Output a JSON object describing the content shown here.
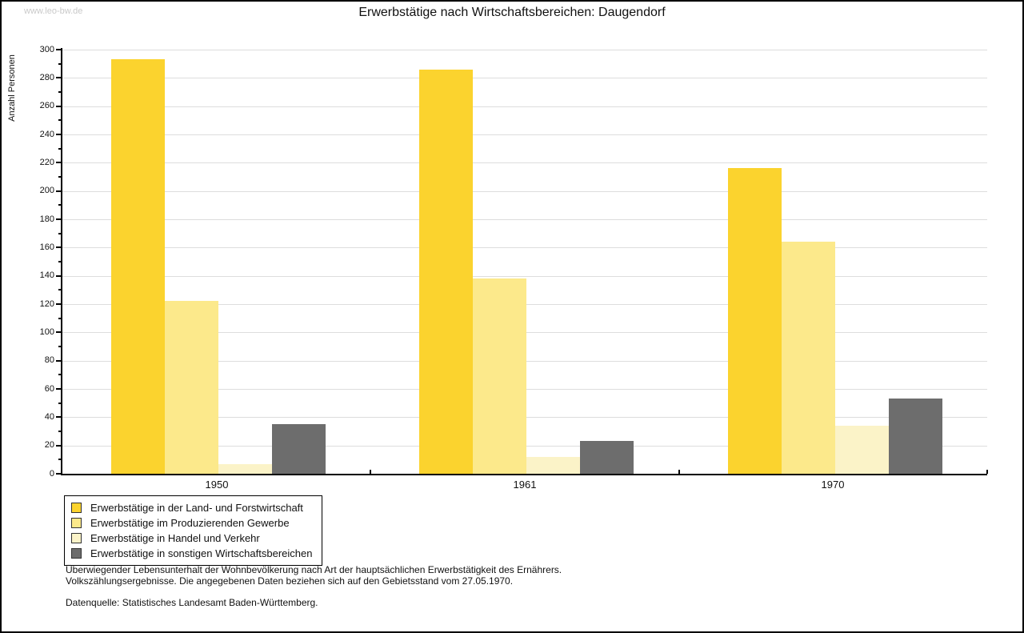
{
  "watermark": "www.leo-bw.de",
  "title": "Erwerbstätige nach Wirtschaftsbereichen: Daugendorf",
  "chart_data": {
    "type": "bar",
    "title": "Erwerbstätige nach Wirtschaftsbereichen: Daugendorf",
    "xlabel": "",
    "ylabel": "Anzahl Personen",
    "categories": [
      "1950",
      "1961",
      "1970"
    ],
    "series": [
      {
        "name": "Erwerbstätige in der Land- und Forstwirtschaft",
        "color": "#FBD32E",
        "values": [
          293,
          286,
          216
        ]
      },
      {
        "name": "Erwerbstätige im Produzierenden Gewerbe",
        "color": "#FCE98B",
        "values": [
          122,
          138,
          164
        ]
      },
      {
        "name": "Erwerbstätige in Handel und Verkehr",
        "color": "#FBF3C8",
        "values": [
          7,
          12,
          34
        ]
      },
      {
        "name": "Erwerbstätige in sonstigen Wirtschaftsbereichen",
        "color": "#6D6D6D",
        "values": [
          35,
          23,
          53
        ]
      }
    ],
    "ylim": [
      0,
      300
    ],
    "ytick_major": 20,
    "ytick_minor": 10,
    "grid": "horizontal",
    "legend_position": "bottom-left"
  },
  "footnote": {
    "line1": "Überwiegender Lebensunterhalt der Wohnbevölkerung nach Art der hauptsächlichen Erwerbstätigkeit des Ernährers.",
    "line2": "Volkszählungsergebnisse. Die angegebenen Daten beziehen sich auf den Gebietsstand vom 27.05.1970.",
    "source": "Datenquelle: Statistisches Landesamt Baden-Württemberg."
  },
  "colors": {
    "axis": "#000000",
    "grid": "#DDDDDD",
    "watermark": "#C9C9C9",
    "background": "#FFFFFF"
  }
}
